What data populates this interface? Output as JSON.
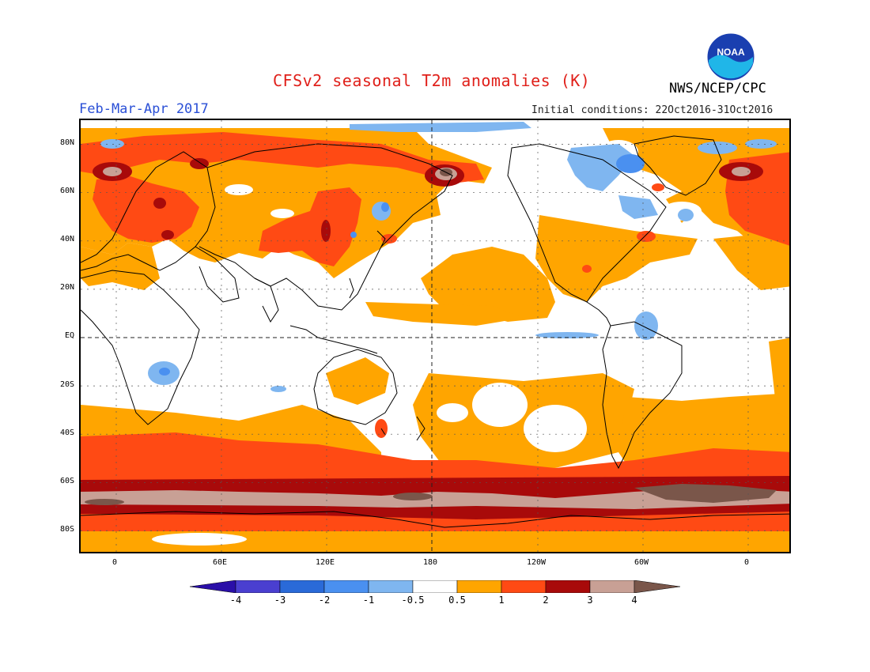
{
  "header": {
    "title": "CFSv2 seasonal T2m anomalies (K)",
    "period": "Feb-Mar-Apr 2017",
    "initial_conditions": "Initial conditions: 22Oct2016-31Oct2016",
    "agency": "NWS/NCEP/CPC",
    "logo_text": "NOAA"
  },
  "map": {
    "lat_labels": [
      "80N",
      "60N",
      "40N",
      "20N",
      "EQ",
      "20S",
      "40S",
      "60S",
      "80S"
    ],
    "lon_labels": [
      "0",
      "60E",
      "120E",
      "180",
      "120W",
      "60W",
      "0"
    ]
  },
  "colorbar": {
    "unit": "K",
    "labels": [
      "-4",
      "-3",
      "-2",
      "-1",
      "-0.5",
      "0.5",
      "1",
      "2",
      "3",
      "4"
    ],
    "colors": [
      "#2a0fa8",
      "#4a3fd0",
      "#2a6ad8",
      "#4a90f0",
      "#7fb6f0",
      "#ffffff",
      "#ffa500",
      "#ff4a14",
      "#a80a0a",
      "#c8a095",
      "#7a564a"
    ]
  }
}
